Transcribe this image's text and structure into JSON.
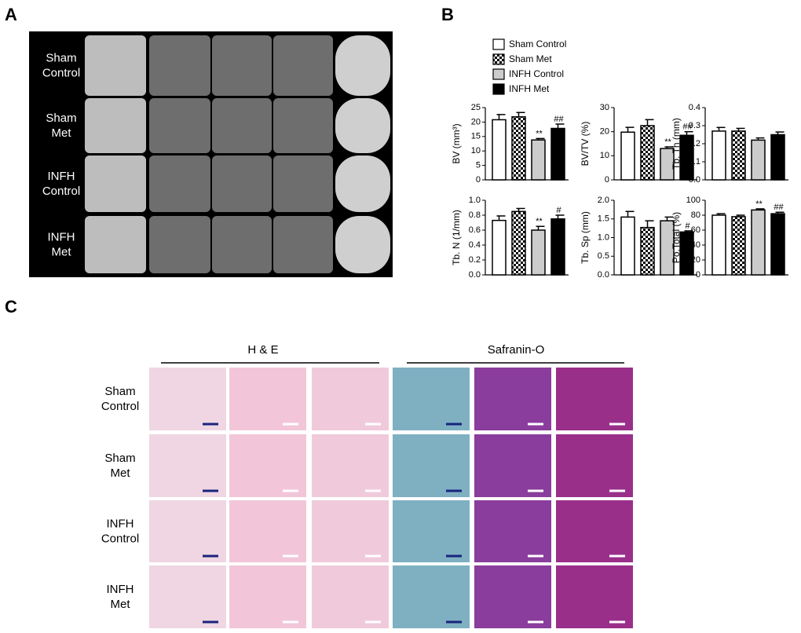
{
  "panel_labels": [
    "A",
    "B",
    "C"
  ],
  "legend": [
    {
      "name": "Sham Control",
      "color": "#ffffff",
      "pattern": "solid"
    },
    {
      "name": "Sham Met",
      "color": "#000000",
      "pattern": "checker"
    },
    {
      "name": "INFH Control",
      "color": "#cccccc",
      "pattern": "solid"
    },
    {
      "name": "INFH Met",
      "color": "#000000",
      "pattern": "solid"
    }
  ],
  "panel_a": {
    "rows": [
      [
        "Sham",
        "Control"
      ],
      [
        "Sham",
        "Met"
      ],
      [
        "INFH",
        "Control"
      ],
      [
        "INFH",
        "Met"
      ]
    ]
  },
  "panel_c": {
    "headers": [
      "H & E",
      "Safranin-O"
    ],
    "rows": [
      [
        "Sham",
        "Control"
      ],
      [
        "Sham",
        "Met"
      ],
      [
        "INFH",
        "Control"
      ],
      [
        "INFH",
        "Met"
      ]
    ]
  },
  "chart_data": [
    {
      "type": "bar",
      "ylabel": "BV (mm³)",
      "values": [
        20.8,
        21.8,
        13.8,
        17.8
      ],
      "errors": [
        1.8,
        1.5,
        0.5,
        1.5
      ],
      "annotations": [
        null,
        null,
        "**",
        "##"
      ],
      "ylim": [
        0,
        25
      ],
      "yticks": [
        0,
        5,
        10,
        15,
        20,
        25
      ]
    },
    {
      "type": "bar",
      "ylabel": "BV/TV (%)",
      "values": [
        19.8,
        22.5,
        13,
        18.5
      ],
      "errors": [
        2,
        2.5,
        0.7,
        1.5
      ],
      "annotations": [
        null,
        null,
        "**",
        "##"
      ],
      "ylim": [
        0,
        30
      ],
      "yticks": [
        0,
        10,
        20,
        30
      ]
    },
    {
      "type": "bar",
      "ylabel": "Tb. Th (mm)",
      "values": [
        0.27,
        0.27,
        0.22,
        0.25
      ],
      "errors": [
        0.02,
        0.015,
        0.012,
        0.015
      ],
      "annotations": [
        null,
        null,
        null,
        null
      ],
      "ylim": [
        0,
        0.4
      ],
      "yticks": [
        {
          "value": 0,
          "label": "0.0"
        },
        0.1,
        0.2,
        0.3,
        0.4
      ]
    },
    {
      "type": "bar",
      "ylabel": "Tb. N (1/mm)",
      "values": [
        0.73,
        0.85,
        0.6,
        0.75
      ],
      "errors": [
        0.06,
        0.04,
        0.05,
        0.05
      ],
      "annotations": [
        null,
        null,
        "**",
        "#"
      ],
      "ylim": [
        0,
        1
      ],
      "yticks": [
        {
          "value": 0,
          "label": "0.0"
        },
        0.2,
        0.4,
        0.6,
        0.8,
        {
          "value": 1,
          "label": "1.0"
        }
      ]
    },
    {
      "type": "bar",
      "ylabel": "Tb. Sp (mm)",
      "values": [
        1.55,
        1.27,
        1.45,
        1.15
      ],
      "errors": [
        0.15,
        0.18,
        0.1,
        0.03
      ],
      "annotations": [
        null,
        null,
        null,
        "#"
      ],
      "ylim": [
        0,
        2
      ],
      "yticks": [
        {
          "value": 0,
          "label": "0.0"
        },
        0.5,
        {
          "value": 1,
          "label": "1.0"
        },
        1.5,
        {
          "value": 2,
          "label": "2.0"
        }
      ]
    },
    {
      "type": "bar",
      "ylabel": "Po.Total (%)",
      "values": [
        80,
        78,
        87,
        82
      ],
      "errors": [
        2,
        2,
        1.5,
        2
      ],
      "annotations": [
        null,
        null,
        "**",
        "##"
      ],
      "ylim": [
        0,
        100
      ],
      "yticks": [
        0,
        20,
        40,
        60,
        80,
        100
      ]
    }
  ]
}
